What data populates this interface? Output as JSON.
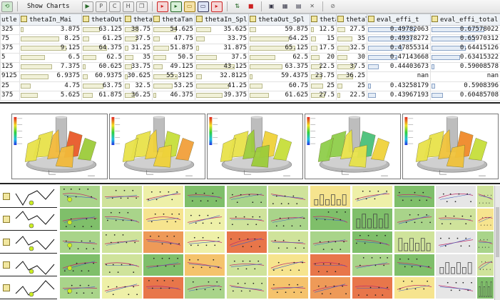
{
  "toolbar": {
    "show_charts_label": "Show Charts",
    "buttons": [
      {
        "name": "refresh-icon",
        "glyph": "⟲",
        "color": "#3b8a3b"
      },
      {
        "name": "run-icon",
        "glyph": "▶",
        "color": "#2a6a2a"
      },
      {
        "name": "pdf-icon",
        "glyph": "P",
        "color": "#4a4a4a"
      },
      {
        "name": "csv-icon",
        "glyph": "C",
        "color": "#4a4a4a"
      },
      {
        "name": "html-icon",
        "glyph": "H",
        "color": "#4a4a4a"
      },
      {
        "name": "copy-icon",
        "glyph": "❐",
        "color": "#4a4a4a"
      },
      {
        "name": "filter-red-icon",
        "glyph": "▸",
        "color": "#c22"
      },
      {
        "name": "filter-green-icon",
        "glyph": "▸",
        "color": "#2a2"
      },
      {
        "name": "folder-icon",
        "glyph": "▭",
        "color": "#c89b2a"
      },
      {
        "name": "square-icon",
        "glyph": "▭",
        "color": "#3355aa"
      },
      {
        "name": "export-icon",
        "glyph": "▸",
        "color": "#c22"
      },
      {
        "name": "sort-icon",
        "glyph": "⇅",
        "color": "#226622"
      },
      {
        "name": "mark-icon",
        "glyph": "■",
        "color": "#c22"
      },
      {
        "name": "monitor-icon",
        "glyph": "▣",
        "color": "#445"
      },
      {
        "name": "grid-icon",
        "glyph": "▦",
        "color": "#445"
      },
      {
        "name": "picture-icon",
        "glyph": "▤",
        "color": "#445"
      },
      {
        "name": "close-icon",
        "glyph": "✕",
        "color": "#555"
      },
      {
        "name": "stop-icon",
        "glyph": "⊘",
        "color": "#666"
      }
    ]
  },
  "table": {
    "columns": [
      {
        "label": "utle",
        "icon": false
      },
      {
        "label": "thetaIn_Mai",
        "icon": true
      },
      {
        "label": "thetaOut",
        "icon": true
      },
      {
        "label": "thetaT",
        "icon": true
      },
      {
        "label": "thetaTan",
        "icon": true
      },
      {
        "label": "thetaIn_Spl",
        "icon": true
      },
      {
        "label": "thetaOut_Spl",
        "icon": true
      },
      {
        "label": "thetaT",
        "icon": true
      },
      {
        "label": "thetaTan",
        "icon": true
      },
      {
        "label": "eval_effi_t",
        "icon": true
      },
      {
        "label": "eval_effi_total",
        "icon": true
      }
    ],
    "rows": [
      [
        "325",
        "3.875",
        "63.125",
        "38.75",
        "54.625",
        "35.625",
        "59.875",
        "12.5",
        "27.5",
        "0.49782063",
        "0.67578022"
      ],
      [
        "75",
        "8.25",
        "61.25",
        "37.5",
        "47.75",
        "33.75",
        "64.25",
        "15",
        "35",
        "0.49378272",
        "0.65970312"
      ],
      [
        "375",
        "9.125",
        "64.375",
        "31.25",
        "51.875",
        "31.875",
        "65.125",
        "17.5",
        "32.5",
        "0.47855314",
        "0.64415126"
      ],
      [
        "5",
        "6.5",
        "62.5",
        "35",
        "50.5",
        "37.5",
        "62.5",
        "20",
        "30",
        "0.47143668",
        "0.63415322"
      ],
      [
        "125",
        "7.375",
        "60.625",
        "33.75",
        "49.125",
        "43.125",
        "63.375",
        "22.5",
        "37.5",
        "0.44403673",
        "0.59008578"
      ],
      [
        "9125",
        "6.9375",
        "60.9375",
        "30.625",
        "55.3125",
        "32.8125",
        "59.4375",
        "23.75",
        "36.25",
        "nan",
        "nan"
      ],
      [
        "25",
        "4.75",
        "63.75",
        "32.5",
        "53.25",
        "41.25",
        "60.75",
        "25",
        "25",
        "0.43258179",
        "0.5908396"
      ],
      [
        "375",
        "5.625",
        "61.875",
        "36.25",
        "46.375",
        "39.375",
        "61.625",
        "27.5",
        "22.5",
        "0.43967193",
        "0.60485708"
      ]
    ]
  },
  "matrix": {
    "colors": [
      "#7fbf6a",
      "#a9d48a",
      "#cfe39b",
      "#eef0a8",
      "#f6e48e",
      "#f5c36c",
      "#ee9a58",
      "#e8764a",
      "#e6e6e6"
    ],
    "point_color": "#ccee22"
  }
}
